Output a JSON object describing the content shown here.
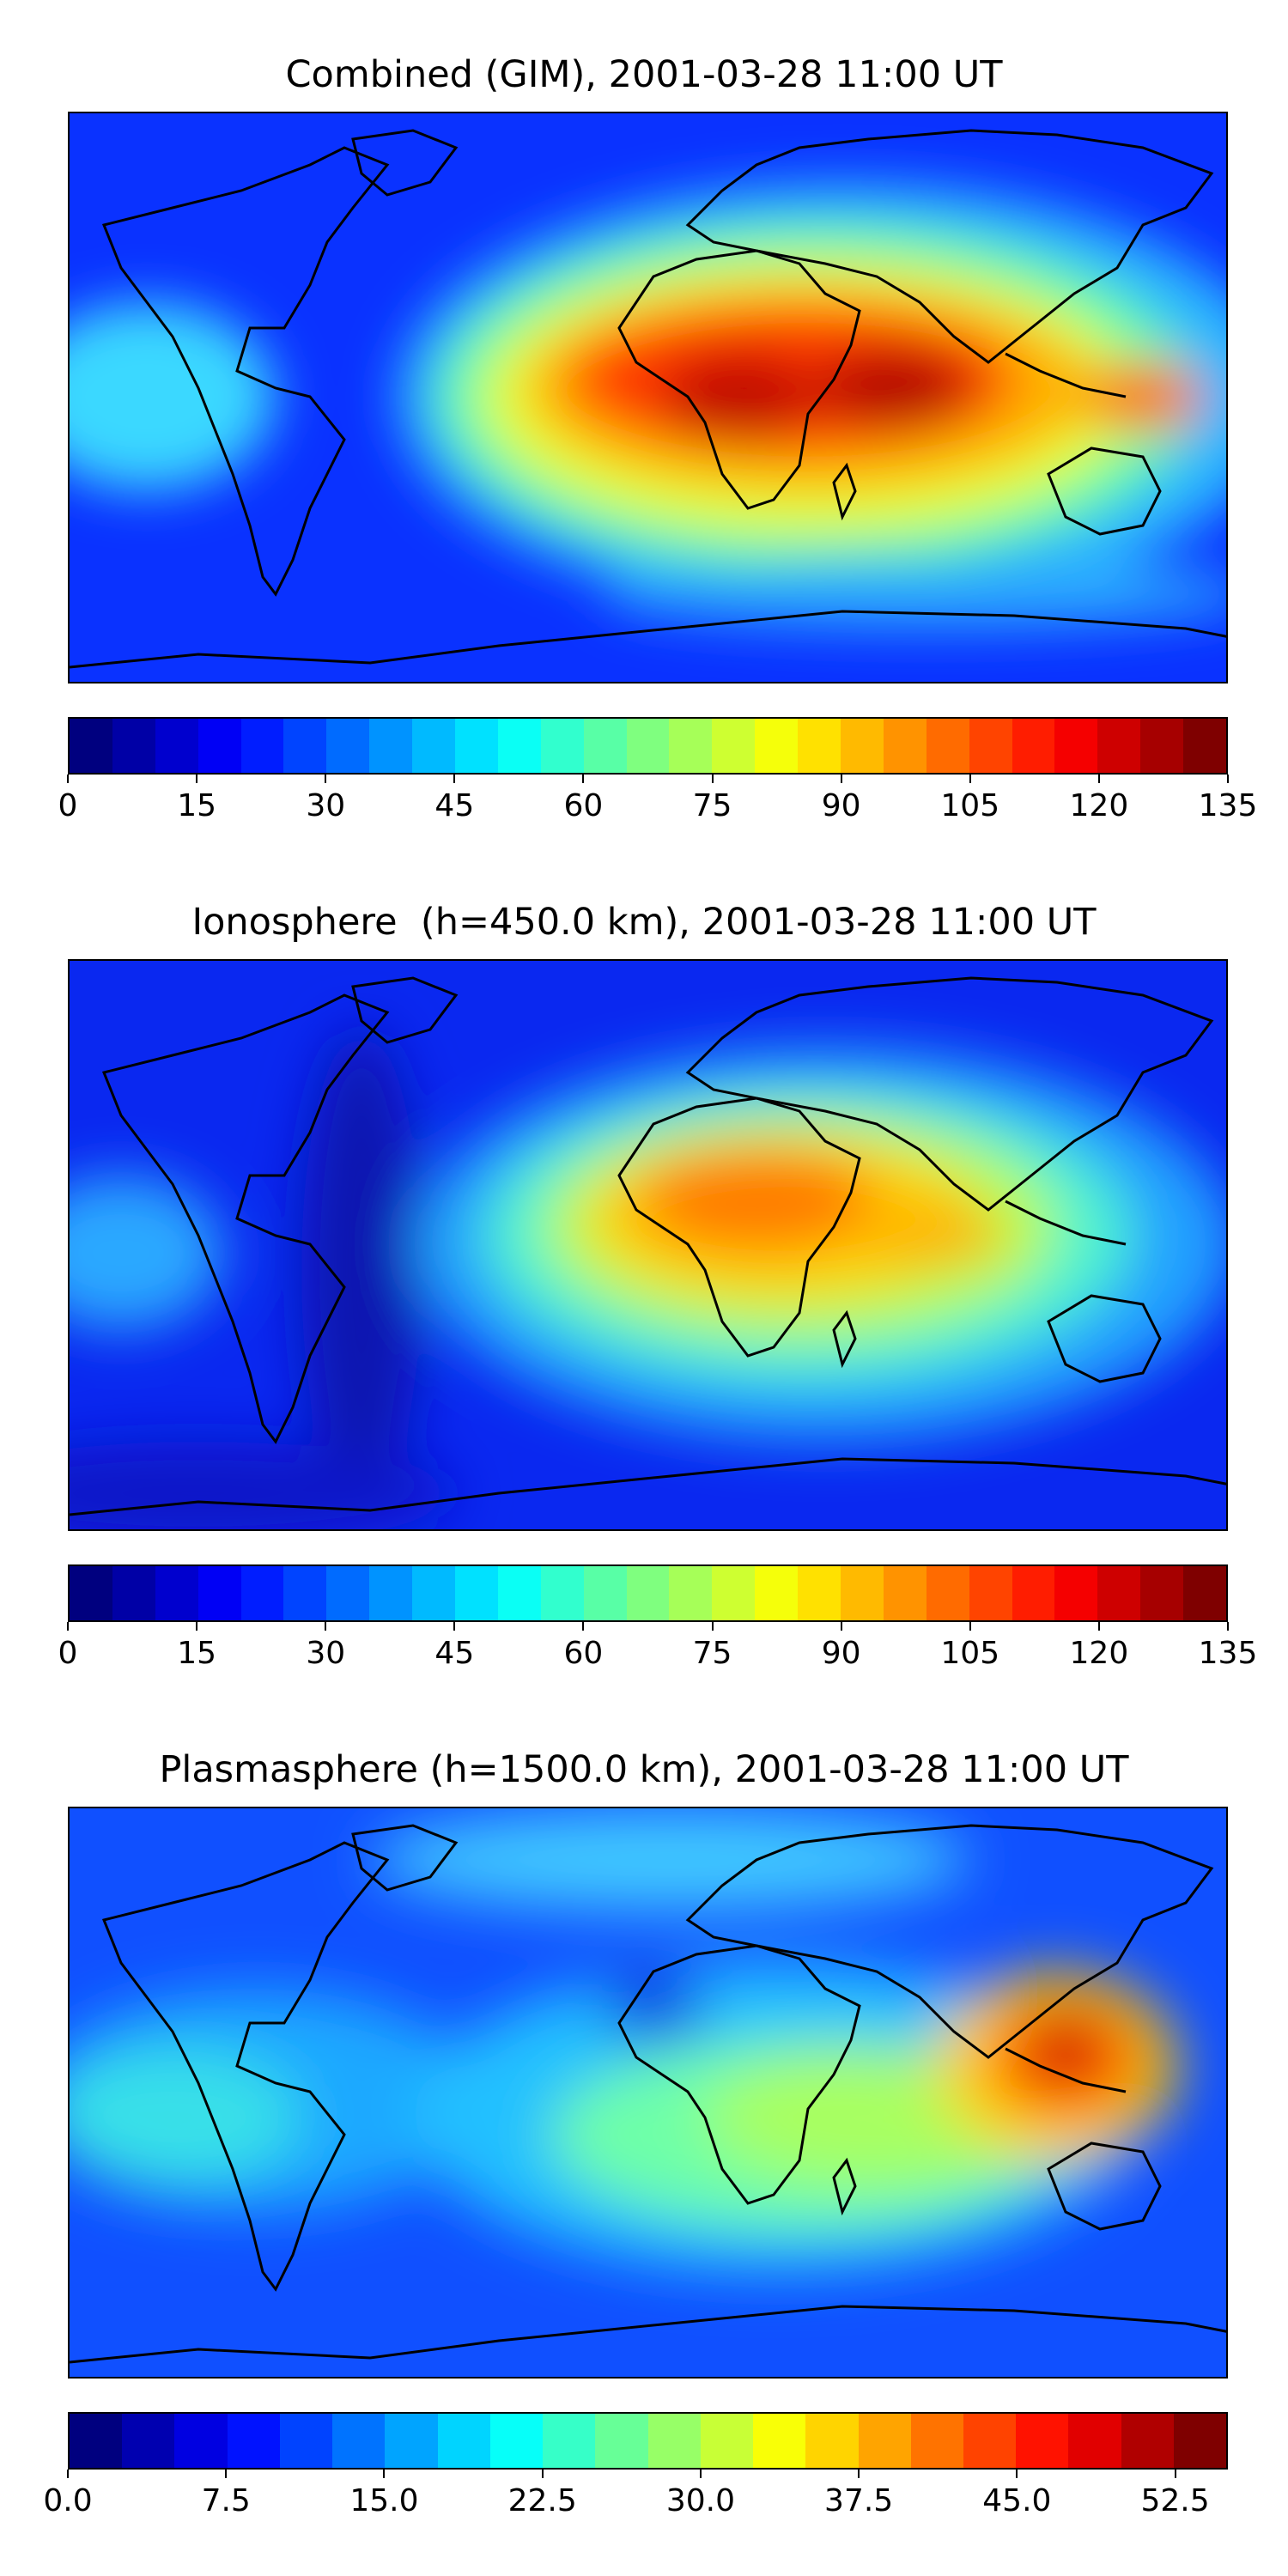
{
  "panels": [
    {
      "title": "Combined (GIM), 2001-03-28 11:00 UT",
      "colorbar_ticks": [
        "0",
        "15",
        "30",
        "45",
        "60",
        "75",
        "90",
        "105",
        "120",
        "135"
      ],
      "colorbar_range": [
        0,
        135
      ],
      "colorbar_levels": 27
    },
    {
      "title": "Ionosphere  (h=450.0 km), 2001-03-28 11:00 UT",
      "colorbar_ticks": [
        "0",
        "15",
        "30",
        "45",
        "60",
        "75",
        "90",
        "105",
        "120",
        "135"
      ],
      "colorbar_range": [
        0,
        135
      ],
      "colorbar_levels": 27
    },
    {
      "title": "Plasmasphere (h=1500.0 km), 2001-03-28 11:00 UT",
      "colorbar_ticks": [
        "0.0",
        "7.5",
        "15.0",
        "22.5",
        "30.0",
        "37.5",
        "45.0",
        "52.5"
      ],
      "colorbar_range": [
        0,
        55
      ],
      "colorbar_levels": 22
    }
  ],
  "colormap": [
    "#00007f",
    "#0000ff",
    "#007fff",
    "#00ffff",
    "#7fff7f",
    "#ffff00",
    "#ff7f00",
    "#ff0000",
    "#7f0000"
  ],
  "coastline_color": "#000000"
}
